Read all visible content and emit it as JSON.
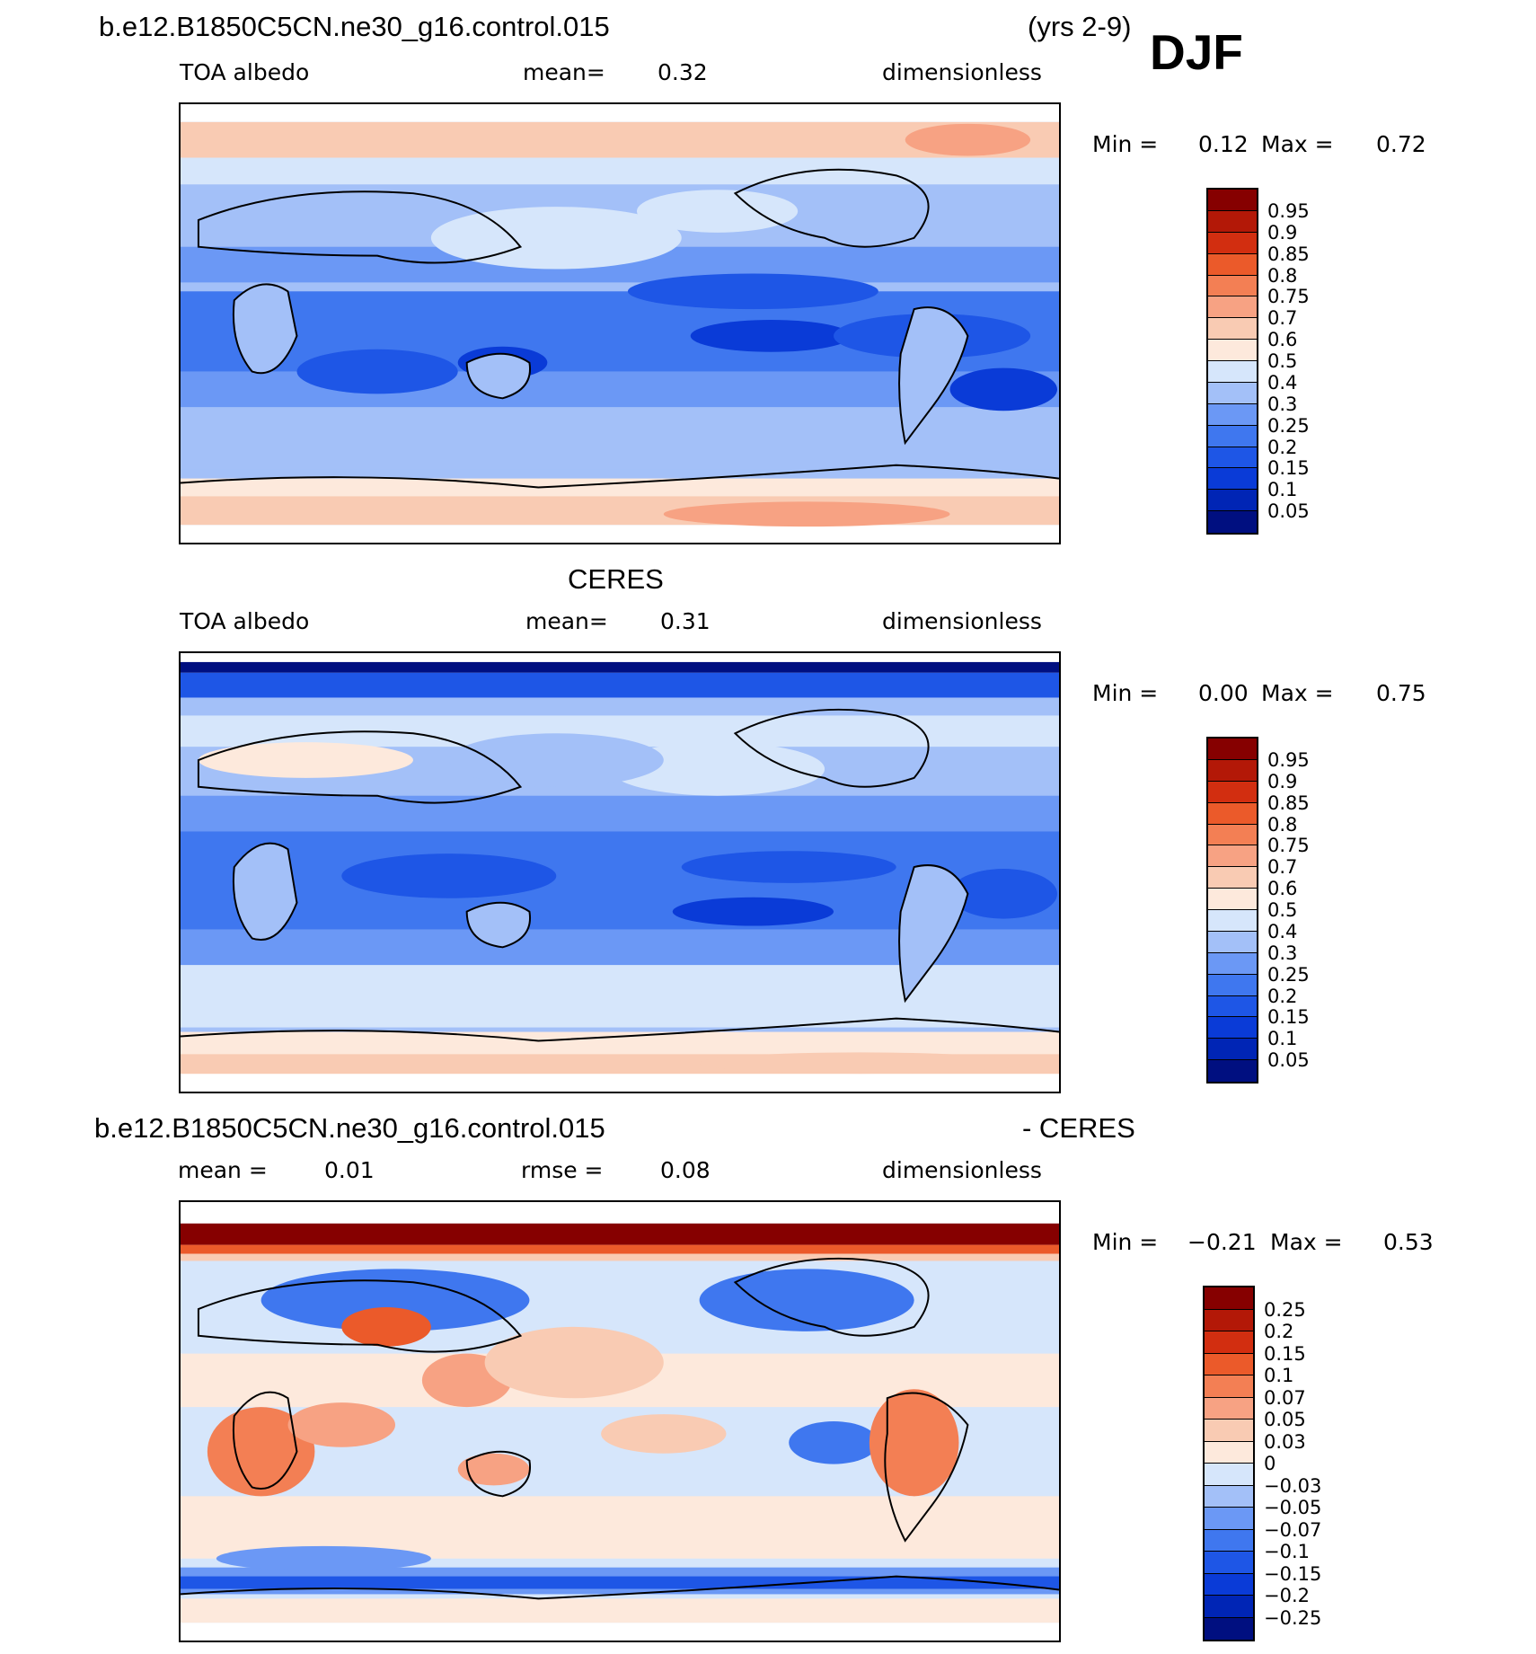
{
  "djf_label": "DJF",
  "panels": [
    {
      "title_left": "b.e12.B1850C5CN.ne30_g16.control.015",
      "title_right": "(yrs 2-9)",
      "var_label": "TOA albedo",
      "stat1_label": "mean=",
      "stat1_value": "0.32",
      "stat2_label": "",
      "stat2_value": "",
      "units": "dimensionless",
      "min_label": "Min =",
      "min_value": "0.12",
      "max_label": "Max =",
      "max_value": "0.72",
      "colorbar_ticks": [
        "0.95",
        "0.9",
        "0.85",
        "0.8",
        "0.75",
        "0.7",
        "0.6",
        "0.5",
        "0.4",
        "0.3",
        "0.25",
        "0.2",
        "0.15",
        "0.1",
        "0.05"
      ]
    },
    {
      "title_center": "CERES",
      "var_label": "TOA albedo",
      "stat1_label": "mean=",
      "stat1_value": "0.31",
      "stat2_label": "",
      "stat2_value": "",
      "units": "dimensionless",
      "min_label": "Min =",
      "min_value": "0.00",
      "max_label": "Max =",
      "max_value": "0.75",
      "colorbar_ticks": [
        "0.95",
        "0.9",
        "0.85",
        "0.8",
        "0.75",
        "0.7",
        "0.6",
        "0.5",
        "0.4",
        "0.3",
        "0.25",
        "0.2",
        "0.15",
        "0.1",
        "0.05"
      ]
    },
    {
      "title_left": "b.e12.B1850C5CN.ne30_g16.control.015",
      "title_right": "- CERES",
      "var_label": "",
      "stat1_label": "mean =",
      "stat1_value": "0.01",
      "stat2_label": "rmse =",
      "stat2_value": "0.08",
      "units": "dimensionless",
      "min_label": "Min =",
      "min_value": "−0.21",
      "max_label": "Max =",
      "max_value": "0.53",
      "colorbar_ticks": [
        "0.25",
        "0.2",
        "0.15",
        "0.1",
        "0.07",
        "0.05",
        "0.03",
        "0",
        "−0.03",
        "−0.05",
        "−0.07",
        "−0.1",
        "−0.15",
        "−0.2",
        "−0.25"
      ]
    }
  ],
  "colors": {
    "albedo_scale": [
      "#000f80",
      "#0025b5",
      "#0a3bd7",
      "#1e56e6",
      "#3f77ef",
      "#6b98f5",
      "#a3c0f8",
      "#d6e6fb",
      "#fde9dc",
      "#f9cbb3",
      "#f7a283",
      "#f37f54",
      "#eb5a2a",
      "#d22e10",
      "#b31807",
      "#860000"
    ],
    "diff_scale": [
      "#000f80",
      "#0025b5",
      "#0a3bd7",
      "#1e56e6",
      "#3f77ef",
      "#6b98f5",
      "#a3c0f8",
      "#d6e6fb",
      "#fde9dc",
      "#f9cbb3",
      "#f7a283",
      "#f37f54",
      "#eb5a2a",
      "#d22e10",
      "#b31807",
      "#860000"
    ],
    "coastline": "#000000"
  }
}
